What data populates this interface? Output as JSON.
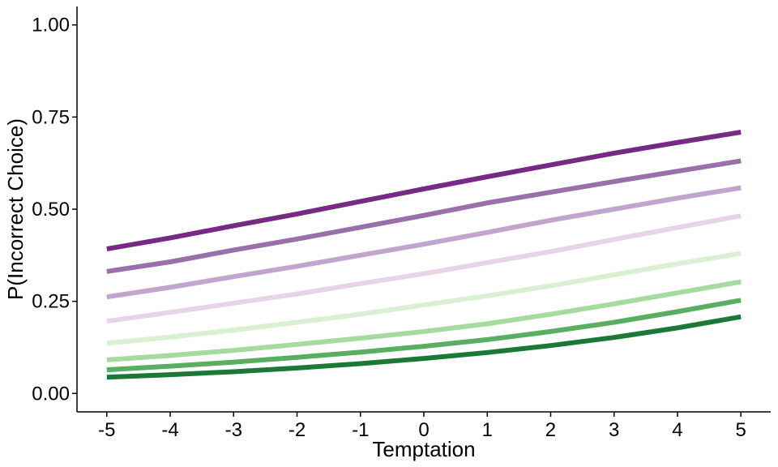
{
  "chart_data": {
    "type": "line",
    "title": "",
    "xlabel": "Temptation",
    "ylabel": "P(Incorrect Choice)",
    "xlim": [
      -5.47,
      5.47
    ],
    "ylim": [
      -0.05,
      1.05
    ],
    "x_ticks": [
      "-5",
      "-4",
      "-3",
      "-2",
      "-1",
      "0",
      "1",
      "2",
      "3",
      "4",
      "5"
    ],
    "x_tick_values": [
      -5,
      -4,
      -3,
      -2,
      -1,
      0,
      1,
      2,
      3,
      4,
      5
    ],
    "y_ticks": [
      "0.00",
      "0.25",
      "0.50",
      "0.75",
      "1.00"
    ],
    "y_tick_values": [
      0,
      0.25,
      0.5,
      0.75,
      1.0
    ],
    "grid": false,
    "legend": "none",
    "x": [
      -5,
      -4,
      -3,
      -2,
      -1,
      0,
      1,
      2,
      3,
      4,
      5
    ],
    "series": [
      {
        "color": "#762a83",
        "values": [
          0.392,
          0.422,
          0.455,
          0.487,
          0.521,
          0.555,
          0.588,
          0.62,
          0.652,
          0.681,
          0.709
        ]
      },
      {
        "color": "#9970ab",
        "values": [
          0.331,
          0.357,
          0.389,
          0.419,
          0.451,
          0.483,
          0.517,
          0.546,
          0.575,
          0.603,
          0.631
        ]
      },
      {
        "color": "#c2a5cf",
        "values": [
          0.262,
          0.288,
          0.317,
          0.345,
          0.375,
          0.405,
          0.437,
          0.47,
          0.5,
          0.53,
          0.558
        ]
      },
      {
        "color": "#e7d4e8",
        "values": [
          0.196,
          0.22,
          0.245,
          0.27,
          0.298,
          0.325,
          0.355,
          0.385,
          0.418,
          0.45,
          0.482
        ]
      },
      {
        "color": "#d9f0d3",
        "values": [
          0.136,
          0.153,
          0.172,
          0.193,
          0.215,
          0.24,
          0.265,
          0.292,
          0.322,
          0.352,
          0.38
        ]
      },
      {
        "color": "#a6dba0",
        "values": [
          0.091,
          0.103,
          0.117,
          0.133,
          0.15,
          0.168,
          0.189,
          0.215,
          0.243,
          0.273,
          0.303
        ]
      },
      {
        "color": "#5aae61",
        "values": [
          0.064,
          0.074,
          0.085,
          0.098,
          0.112,
          0.128,
          0.146,
          0.168,
          0.193,
          0.222,
          0.253
        ]
      },
      {
        "color": "#1b7837",
        "values": [
          0.044,
          0.051,
          0.059,
          0.069,
          0.081,
          0.095,
          0.111,
          0.13,
          0.152,
          0.178,
          0.208
        ]
      }
    ]
  }
}
